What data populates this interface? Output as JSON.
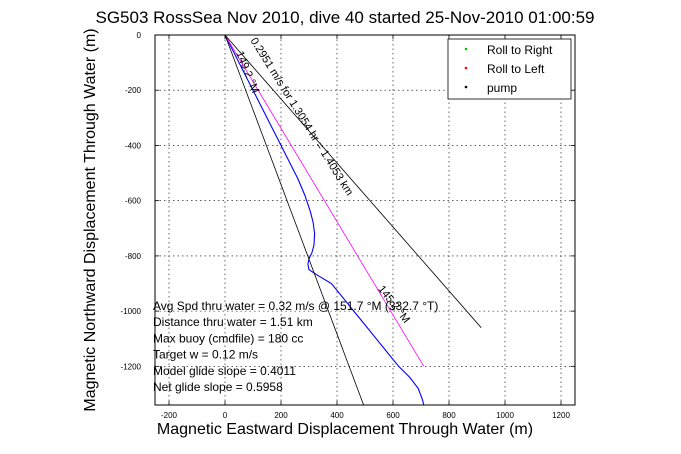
{
  "chart_data": {
    "type": "line",
    "title": "SG503 RossSea Nov 2010, dive 40 started 25-Nov-2010 01:00:59",
    "xlabel": "Magnetic Eastward Displacement Through Water (m)",
    "ylabel": "Magnetic Northward Displacement Through Water (m)",
    "xlim": [
      -250,
      1250
    ],
    "ylim": [
      -1340,
      0
    ],
    "xticks": [
      -200,
      0,
      200,
      400,
      600,
      800,
      1000,
      1200
    ],
    "yticks": [
      0,
      -200,
      -400,
      -600,
      -800,
      -1000,
      -1200
    ],
    "grid": true,
    "legend_position": "top-right",
    "legend": [
      {
        "label": "Roll to Right",
        "color": "#00cc00"
      },
      {
        "label": "Roll to Left",
        "color": "#ff0000"
      },
      {
        "label": "pump",
        "color": "#000000"
      }
    ],
    "series": [
      {
        "color": "#0000ff",
        "x": [
          0,
          20,
          50,
          80,
          110,
          140,
          170,
          200,
          230,
          260,
          285,
          305,
          315,
          320,
          318,
          310,
          300,
          296,
          300,
          330,
          380,
          420,
          460,
          500,
          540,
          580,
          620,
          660,
          690,
          705,
          710
        ],
        "y": [
          0,
          -40,
          -100,
          -160,
          -220,
          -280,
          -340,
          -400,
          -460,
          -520,
          -580,
          -640,
          -680,
          -720,
          -760,
          -790,
          -810,
          -830,
          -850,
          -870,
          -900,
          -950,
          -1000,
          -1050,
          -1100,
          -1150,
          -1200,
          -1240,
          -1280,
          -1320,
          -1340
        ]
      },
      {
        "color": "#ff00ff",
        "x": [
          0,
          710
        ],
        "y": [
          0,
          -1200
        ]
      },
      {
        "color": "#000000",
        "x": [
          0,
          915
        ],
        "y": [
          0,
          -1060
        ]
      },
      {
        "color": "#000000",
        "x": [
          0,
          495
        ],
        "y": [
          0,
          -1340
        ]
      }
    ],
    "annotations": [
      {
        "text": "0.2951 m/s for 1.3054 hr = 1.4053 km",
        "x": 90,
        "y": -20,
        "angle": 58
      },
      {
        "text": "149.2 °M",
        "x": 40,
        "y": -65,
        "angle": 68
      },
      {
        "text": "145.2 °M",
        "x": 545,
        "y": -920,
        "angle": 52
      }
    ],
    "info_lines": [
      "Avg Spd thru water =  0.32 m/s @ 151.7  °M (332.7 °T)",
      "Distance thru water =  1.51 km",
      "Max buoy (cmdfile) = 180 cc",
      "Target w = 0.12 m/s",
      "Model glide slope = 0.4011",
      "Net glide slope = 0.5958"
    ]
  }
}
